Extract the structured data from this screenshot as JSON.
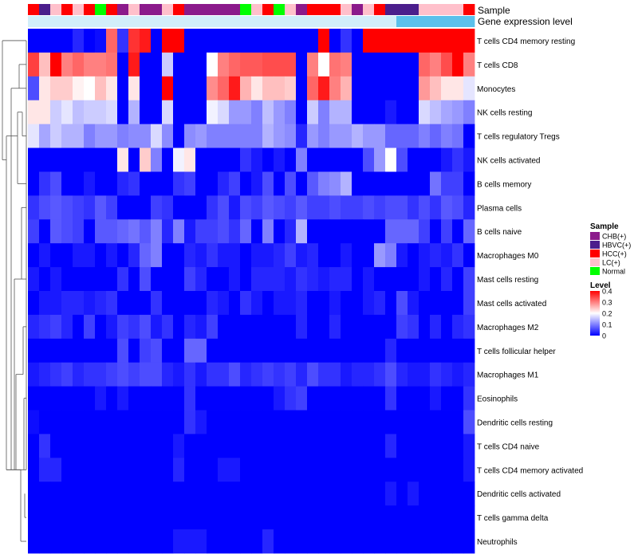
{
  "chart_data": {
    "type": "heatmap",
    "annotation_labels": {
      "sample": "Sample",
      "gene": "Gene expression level"
    },
    "legend_sample": {
      "title": "Sample",
      "items": [
        {
          "label": "CHB(+)",
          "color": "#8B1A8B"
        },
        {
          "label": "HBVC(+)",
          "color": "#4B1E8C"
        },
        {
          "label": "HCC(+)",
          "color": "#FF0000"
        },
        {
          "label": "LC(+)",
          "color": "#FFC0CB"
        },
        {
          "label": "Normal",
          "color": "#00FF00"
        }
      ]
    },
    "legend_level": {
      "title": "Level",
      "ticks": [
        "0.4",
        "0.3",
        "0.2",
        "0.1",
        "0"
      ],
      "tick_values": [
        0.4,
        0.3,
        0.2,
        0.1,
        0
      ],
      "min": 0,
      "max": 0.4,
      "colors": {
        "low": "#0000FF",
        "mid": "#FFFFFF",
        "high": "#FF0000"
      }
    },
    "sample_groups": [
      "HCC",
      "HBVC",
      "LC",
      "HCC",
      "LC",
      "HCC",
      "Normal",
      "HCC",
      "CHB",
      "LC",
      "CHB",
      "CHB",
      "LC",
      "HCC",
      "CHB",
      "CHB",
      "CHB",
      "CHB",
      "CHB",
      "Normal",
      "LC",
      "HCC",
      "Normal",
      "LC",
      "CHB",
      "HCC",
      "HCC",
      "HCC",
      "LC",
      "CHB",
      "LC",
      "HCC",
      "HBVC",
      "HBVC",
      "HBVC",
      "LC",
      "LC",
      "LC",
      "LC",
      "HCC"
    ],
    "gene_level": [
      0.2,
      0.2,
      0.2,
      0.2,
      0.2,
      0.2,
      0.2,
      0.2,
      0.2,
      0.2,
      0.2,
      0.2,
      0.2,
      0.2,
      0.2,
      0.2,
      0.2,
      0.2,
      0.2,
      0.2,
      0.2,
      0.2,
      0.2,
      0.2,
      0.2,
      0.2,
      0.2,
      0.2,
      0.2,
      0.2,
      0.2,
      0.2,
      0.2,
      0.3,
      0.3,
      0.3,
      0.3,
      0.3,
      0.3,
      0.3
    ],
    "rows": [
      {
        "label": "T cells CD4 memory resting",
        "values": [
          0,
          0,
          0,
          0,
          0.03,
          0,
          0.01,
          0.32,
          0.04,
          0.36,
          0.38,
          0,
          0.42,
          0.42,
          0,
          0,
          0,
          0,
          0,
          0,
          0,
          0,
          0,
          0,
          0,
          0,
          0.42,
          0,
          0.04,
          0,
          0.42,
          0.42,
          0.42,
          0.42,
          0.42,
          0.42,
          0.42,
          0.42,
          0.42,
          0.42
        ]
      },
      {
        "label": "T cells CD8",
        "values": [
          0.35,
          0.25,
          0.4,
          0.3,
          0.32,
          0.3,
          0.3,
          0.31,
          0,
          0.38,
          0,
          0,
          0.16,
          0,
          0,
          0,
          0.2,
          0.3,
          0.32,
          0.33,
          0.33,
          0.34,
          0.34,
          0.34,
          0,
          0.3,
          0.2,
          0.31,
          0.3,
          0,
          0,
          0,
          0,
          0,
          0,
          0.32,
          0.3,
          0.34,
          0.4,
          0.3
        ]
      },
      {
        "label": "Monocytes",
        "values": [
          0.06,
          0.22,
          0.24,
          0.24,
          0.21,
          0.2,
          0.25,
          0.22,
          0,
          0.22,
          0,
          0,
          0.42,
          0,
          0,
          0,
          0.29,
          0.32,
          0.38,
          0.26,
          0.22,
          0.25,
          0.25,
          0.24,
          0,
          0.32,
          0.38,
          0.3,
          0.26,
          0,
          0,
          0,
          0,
          0,
          0,
          0.28,
          0.25,
          0.22,
          0.22,
          0.18
        ]
      },
      {
        "label": "NK cells resting",
        "values": [
          0.22,
          0.22,
          0.16,
          0.18,
          0.15,
          0.16,
          0.16,
          0.17,
          0,
          0.14,
          0,
          0,
          0.17,
          0,
          0,
          0,
          0.19,
          0.17,
          0.12,
          0.12,
          0.1,
          0.15,
          0.12,
          0.1,
          0,
          0.16,
          0.1,
          0.14,
          0.14,
          0,
          0,
          0,
          0.02,
          0,
          0,
          0.17,
          0.15,
          0.13,
          0.12,
          0.1
        ]
      },
      {
        "label": "T cells regulatory  Tregs",
        "values": [
          0.18,
          0.13,
          0.16,
          0.14,
          0.14,
          0.1,
          0.12,
          0.12,
          0.1,
          0.11,
          0.11,
          0.17,
          0.11,
          0,
          0.11,
          0.12,
          0.1,
          0.1,
          0.1,
          0.1,
          0.1,
          0.14,
          0.12,
          0.11,
          0.03,
          0.12,
          0.1,
          0.12,
          0.12,
          0.14,
          0.12,
          0.12,
          0.08,
          0.08,
          0.08,
          0.1,
          0.08,
          0.1,
          0.09,
          0
        ]
      },
      {
        "label": "NK cells activated",
        "values": [
          0,
          0,
          0,
          0,
          0,
          0,
          0,
          0,
          0.22,
          0,
          0.24,
          0.1,
          0,
          0.19,
          0.22,
          0,
          0,
          0,
          0,
          0.04,
          0.02,
          0,
          0.02,
          0,
          0.1,
          0,
          0,
          0,
          0,
          0,
          0.06,
          0.12,
          0.2,
          0.06,
          0,
          0,
          0,
          0.02,
          0.04,
          0.02
        ]
      },
      {
        "label": "B cells memory",
        "values": [
          0,
          0.04,
          0.06,
          0,
          0,
          0.02,
          0,
          0,
          0.03,
          0.04,
          0,
          0,
          0,
          0.04,
          0.05,
          0,
          0,
          0.03,
          0.05,
          0,
          0.02,
          0.06,
          0,
          0.06,
          0,
          0.07,
          0.1,
          0.11,
          0.14,
          0,
          0,
          0,
          0,
          0,
          0,
          0,
          0.09,
          0.05,
          0.05,
          0
        ]
      },
      {
        "label": "Plasma cells",
        "values": [
          0.04,
          0.06,
          0.07,
          0.06,
          0.05,
          0.04,
          0.07,
          0.05,
          0,
          0,
          0,
          0.05,
          0.04,
          0,
          0,
          0,
          0.04,
          0.06,
          0.02,
          0.06,
          0.05,
          0.07,
          0.06,
          0.05,
          0.07,
          0.05,
          0.05,
          0.06,
          0.05,
          0.05,
          0.06,
          0.05,
          0.06,
          0.06,
          0.04,
          0.06,
          0.04,
          0.07,
          0.06,
          0.03
        ]
      },
      {
        "label": "B cells naive",
        "values": [
          0.05,
          0,
          0.07,
          0.06,
          0.05,
          0,
          0.07,
          0.07,
          0.08,
          0.09,
          0.07,
          0.1,
          0.03,
          0.1,
          0.02,
          0.05,
          0.05,
          0.06,
          0.04,
          0.08,
          0,
          0.1,
          0,
          0.03,
          0.14,
          0,
          0,
          0,
          0,
          0,
          0,
          0,
          0.08,
          0.08,
          0.08,
          0.05,
          0,
          0.05,
          0,
          0.08
        ]
      },
      {
        "label": "Macrophages M0",
        "values": [
          0,
          0.02,
          0,
          0,
          0.02,
          0.02,
          0,
          0.02,
          0,
          0.03,
          0.08,
          0.1,
          0,
          0,
          0.03,
          0.02,
          0.04,
          0.02,
          0.02,
          0,
          0.02,
          0.02,
          0.03,
          0.05,
          0.02,
          0.03,
          0,
          0,
          0.02,
          0,
          0,
          0.12,
          0.1,
          0.02,
          0,
          0.02,
          0.03,
          0.02,
          0.04,
          0
        ]
      },
      {
        "label": "Mast cells resting",
        "values": [
          0.02,
          0,
          0.02,
          0,
          0,
          0,
          0,
          0,
          0.04,
          0,
          0.06,
          0,
          0,
          0,
          0.05,
          0.03,
          0,
          0,
          0.02,
          0,
          0.03,
          0.03,
          0.03,
          0.02,
          0.04,
          0.03,
          0.02,
          0.03,
          0.03,
          0,
          0.02,
          0,
          0,
          0,
          0,
          0.02,
          0,
          0.03,
          0,
          0.05
        ]
      },
      {
        "label": "Mast cells activated",
        "values": [
          0,
          0.02,
          0.02,
          0.03,
          0.03,
          0.02,
          0.03,
          0.04,
          0,
          0,
          0,
          0.04,
          0,
          0,
          0,
          0,
          0.03,
          0.02,
          0,
          0.04,
          0.02,
          0,
          0.02,
          0.02,
          0.03,
          0,
          0,
          0.02,
          0,
          0,
          0.02,
          0.03,
          0,
          0.06,
          0.02,
          0,
          0,
          0,
          0,
          0.05
        ]
      },
      {
        "label": "Macrophages M2",
        "values": [
          0.03,
          0.04,
          0.05,
          0.03,
          0,
          0.05,
          0,
          0.02,
          0.05,
          0.04,
          0.06,
          0.02,
          0.04,
          0,
          0.03,
          0.02,
          0.05,
          0,
          0,
          0,
          0,
          0,
          0,
          0,
          0.03,
          0,
          0,
          0.03,
          0,
          0,
          0,
          0,
          0,
          0.05,
          0.04,
          0,
          0.03,
          0,
          0.03,
          0.04
        ]
      },
      {
        "label": "T cells follicular helper",
        "values": [
          0,
          0,
          0,
          0,
          0,
          0,
          0,
          0,
          0.06,
          0,
          0.05,
          0.06,
          0,
          0,
          0.08,
          0.08,
          0,
          0,
          0,
          0,
          0,
          0,
          0,
          0,
          0,
          0,
          0,
          0,
          0,
          0,
          0,
          0,
          0.03,
          0,
          0,
          0,
          0,
          0,
          0,
          0
        ]
      },
      {
        "label": "Macrophages M1",
        "values": [
          0.02,
          0.03,
          0.04,
          0.05,
          0.03,
          0.04,
          0.04,
          0.05,
          0.06,
          0.05,
          0.06,
          0.06,
          0.03,
          0.02,
          0.04,
          0.02,
          0.04,
          0.04,
          0.06,
          0.03,
          0.04,
          0.05,
          0.04,
          0.05,
          0.03,
          0.06,
          0.04,
          0.04,
          0.02,
          0.03,
          0.03,
          0.04,
          0.06,
          0.03,
          0.02,
          0.02,
          0.04,
          0.03,
          0.02,
          0.03
        ]
      },
      {
        "label": "Eosinophils",
        "values": [
          0,
          0,
          0,
          0,
          0,
          0,
          0.02,
          0,
          0.02,
          0,
          0,
          0,
          0,
          0,
          0.04,
          0,
          0,
          0,
          0,
          0,
          0,
          0,
          0.02,
          0.04,
          0.05,
          0,
          0,
          0,
          0,
          0,
          0,
          0,
          0.04,
          0,
          0,
          0,
          0.02,
          0,
          0,
          0.04
        ]
      },
      {
        "label": "Dendritic cells resting",
        "values": [
          0.01,
          0,
          0,
          0,
          0,
          0,
          0,
          0,
          0,
          0,
          0,
          0,
          0,
          0,
          0.04,
          0.02,
          0,
          0,
          0,
          0,
          0,
          0,
          0,
          0,
          0,
          0,
          0,
          0,
          0,
          0,
          0,
          0,
          0,
          0,
          0,
          0,
          0,
          0,
          0,
          0.06
        ]
      },
      {
        "label": "T cells CD4 naive",
        "values": [
          0,
          0.04,
          0,
          0,
          0,
          0,
          0,
          0,
          0,
          0,
          0,
          0,
          0,
          0.02,
          0,
          0,
          0,
          0,
          0,
          0,
          0,
          0,
          0,
          0,
          0,
          0,
          0,
          0,
          0,
          0,
          0,
          0,
          0.03,
          0,
          0,
          0,
          0,
          0,
          0,
          0.02
        ]
      },
      {
        "label": "T cells CD4 memory activated",
        "values": [
          0,
          0.03,
          0.03,
          0,
          0,
          0,
          0,
          0,
          0,
          0,
          0,
          0,
          0,
          0.03,
          0,
          0,
          0,
          0.02,
          0.02,
          0,
          0,
          0,
          0,
          0,
          0,
          0,
          0,
          0,
          0,
          0,
          0,
          0,
          0,
          0,
          0,
          0,
          0,
          0,
          0,
          0.02
        ]
      },
      {
        "label": "Dendritic cells activated",
        "values": [
          0,
          0,
          0,
          0,
          0,
          0,
          0,
          0,
          0,
          0,
          0,
          0,
          0,
          0,
          0,
          0,
          0,
          0,
          0,
          0,
          0,
          0,
          0,
          0,
          0,
          0,
          0,
          0,
          0,
          0,
          0,
          0,
          0.02,
          0,
          0.02,
          0,
          0,
          0,
          0,
          0
        ]
      },
      {
        "label": "T cells gamma delta",
        "values": [
          0,
          0,
          0,
          0,
          0,
          0,
          0,
          0,
          0,
          0,
          0,
          0,
          0,
          0,
          0,
          0,
          0,
          0,
          0,
          0,
          0,
          0,
          0,
          0,
          0,
          0,
          0,
          0,
          0,
          0,
          0,
          0,
          0,
          0,
          0,
          0,
          0,
          0,
          0,
          0
        ]
      },
      {
        "label": "Neutrophils",
        "values": [
          0,
          0,
          0,
          0,
          0,
          0,
          0,
          0,
          0,
          0,
          0,
          0,
          0,
          0.02,
          0.02,
          0.02,
          0,
          0,
          0,
          0,
          0,
          0.03,
          0,
          0,
          0,
          0,
          0,
          0,
          0,
          0,
          0,
          0,
          0,
          0,
          0,
          0,
          0,
          0,
          0,
          0
        ]
      }
    ]
  }
}
